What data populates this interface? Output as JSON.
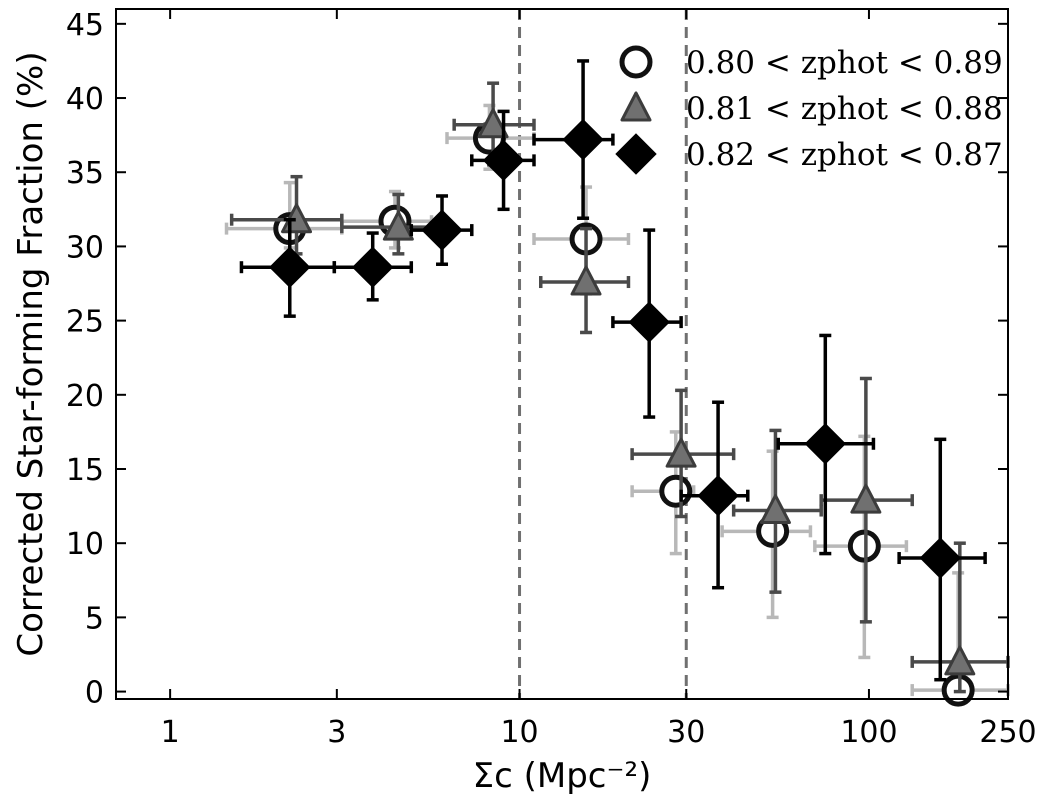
{
  "chart_data": {
    "type": "scatter",
    "title": "",
    "xlabel": "Σc (Mpc⁻²)",
    "ylabel": "Corrected Star-forming Fraction (%)",
    "xscale": "log",
    "xlim": [
      0.7,
      250
    ],
    "ylim": [
      -0.5,
      46
    ],
    "xticks": [
      1,
      3,
      10,
      30,
      100,
      250
    ],
    "yticks": [
      0,
      5,
      10,
      15,
      20,
      25,
      30,
      35,
      40,
      45
    ],
    "vlines": [
      10,
      30
    ],
    "legend_position": "top-right",
    "series": [
      {
        "name": "0.80 < zphot < 0.89",
        "marker": "circle",
        "color": "#111111",
        "errcolor": "#b8b8b8",
        "points": [
          {
            "x": 2.2,
            "y": 31.2,
            "xlo": 1.45,
            "xhi": 3.1,
            "ylo": 29.9,
            "yhi": 34.3
          },
          {
            "x": 4.4,
            "y": 31.7,
            "xlo": 3.1,
            "xhi": 5.6,
            "ylo": 29.9,
            "yhi": 33.7
          },
          {
            "x": 8.2,
            "y": 37.3,
            "xlo": 6.2,
            "xhi": 11.0,
            "ylo": 35.2,
            "yhi": 39.5
          },
          {
            "x": 15.5,
            "y": 30.5,
            "xlo": 11.0,
            "xhi": 20.5,
            "ylo": 26.8,
            "yhi": 34.0
          },
          {
            "x": 28.0,
            "y": 13.5,
            "xlo": 21.0,
            "xhi": 31.5,
            "ylo": 9.3,
            "yhi": 17.5
          },
          {
            "x": 53.0,
            "y": 10.8,
            "xlo": 38.0,
            "xhi": 68.0,
            "ylo": 5.0,
            "yhi": 16.2
          },
          {
            "x": 97.0,
            "y": 9.8,
            "xlo": 70.0,
            "xhi": 128.0,
            "ylo": 2.3,
            "yhi": 17.2
          },
          {
            "x": 180.0,
            "y": 0.1,
            "xlo": 133.0,
            "xhi": 250.0,
            "ylo": 0.0,
            "yhi": 8.0
          }
        ]
      },
      {
        "name": "0.81 < zphot < 0.88",
        "marker": "triangle",
        "color": "#707070",
        "errcolor": "#4a4a4a",
        "points": [
          {
            "x": 2.3,
            "y": 31.8,
            "xlo": 1.5,
            "xhi": 3.1,
            "ylo": 29.5,
            "yhi": 34.7
          },
          {
            "x": 4.5,
            "y": 31.3,
            "xlo": 3.1,
            "xhi": 5.6,
            "ylo": 29.5,
            "yhi": 33.5
          },
          {
            "x": 8.4,
            "y": 38.2,
            "xlo": 6.5,
            "xhi": 11.0,
            "ylo": 35.5,
            "yhi": 41.0
          },
          {
            "x": 15.5,
            "y": 27.6,
            "xlo": 11.5,
            "xhi": 20.5,
            "ylo": 24.2,
            "yhi": 31.2
          },
          {
            "x": 29.0,
            "y": 16.0,
            "xlo": 21.0,
            "xhi": 41.0,
            "ylo": 11.8,
            "yhi": 20.3
          },
          {
            "x": 54.0,
            "y": 12.2,
            "xlo": 41.0,
            "xhi": 73.0,
            "ylo": 6.7,
            "yhi": 17.6
          },
          {
            "x": 98.0,
            "y": 12.9,
            "xlo": 73.0,
            "xhi": 133.0,
            "ylo": 4.7,
            "yhi": 21.1
          },
          {
            "x": 182.0,
            "y": 2.0,
            "xlo": 133.0,
            "xhi": 250.0,
            "ylo": 0.0,
            "yhi": 10.0
          }
        ]
      },
      {
        "name": "0.82 < zphot < 0.87",
        "marker": "diamond",
        "color": "#000000",
        "errcolor": "#000000",
        "points": [
          {
            "x": 2.2,
            "y": 28.6,
            "xlo": 1.6,
            "xhi": 2.95,
            "ylo": 25.3,
            "yhi": 31.8
          },
          {
            "x": 3.8,
            "y": 28.6,
            "xlo": 2.95,
            "xhi": 4.9,
            "ylo": 26.4,
            "yhi": 30.9
          },
          {
            "x": 6.0,
            "y": 31.1,
            "xlo": 4.9,
            "xhi": 7.3,
            "ylo": 28.8,
            "yhi": 33.4
          },
          {
            "x": 9.0,
            "y": 35.8,
            "xlo": 7.3,
            "xhi": 11.0,
            "ylo": 32.5,
            "yhi": 39.1
          },
          {
            "x": 15.2,
            "y": 37.2,
            "xlo": 11.0,
            "xhi": 18.5,
            "ylo": 31.9,
            "yhi": 42.5
          },
          {
            "x": 23.5,
            "y": 24.9,
            "xlo": 18.5,
            "xhi": 29.0,
            "ylo": 18.5,
            "yhi": 31.1
          },
          {
            "x": 37.0,
            "y": 13.2,
            "xlo": 29.0,
            "xhi": 45.0,
            "ylo": 7.0,
            "yhi": 19.5
          },
          {
            "x": 75.0,
            "y": 16.7,
            "xlo": 55.0,
            "xhi": 103.0,
            "ylo": 9.3,
            "yhi": 24.0
          },
          {
            "x": 160.0,
            "y": 9.0,
            "xlo": 122.0,
            "xhi": 215.0,
            "ylo": 0.8,
            "yhi": 17.0
          }
        ]
      }
    ]
  }
}
